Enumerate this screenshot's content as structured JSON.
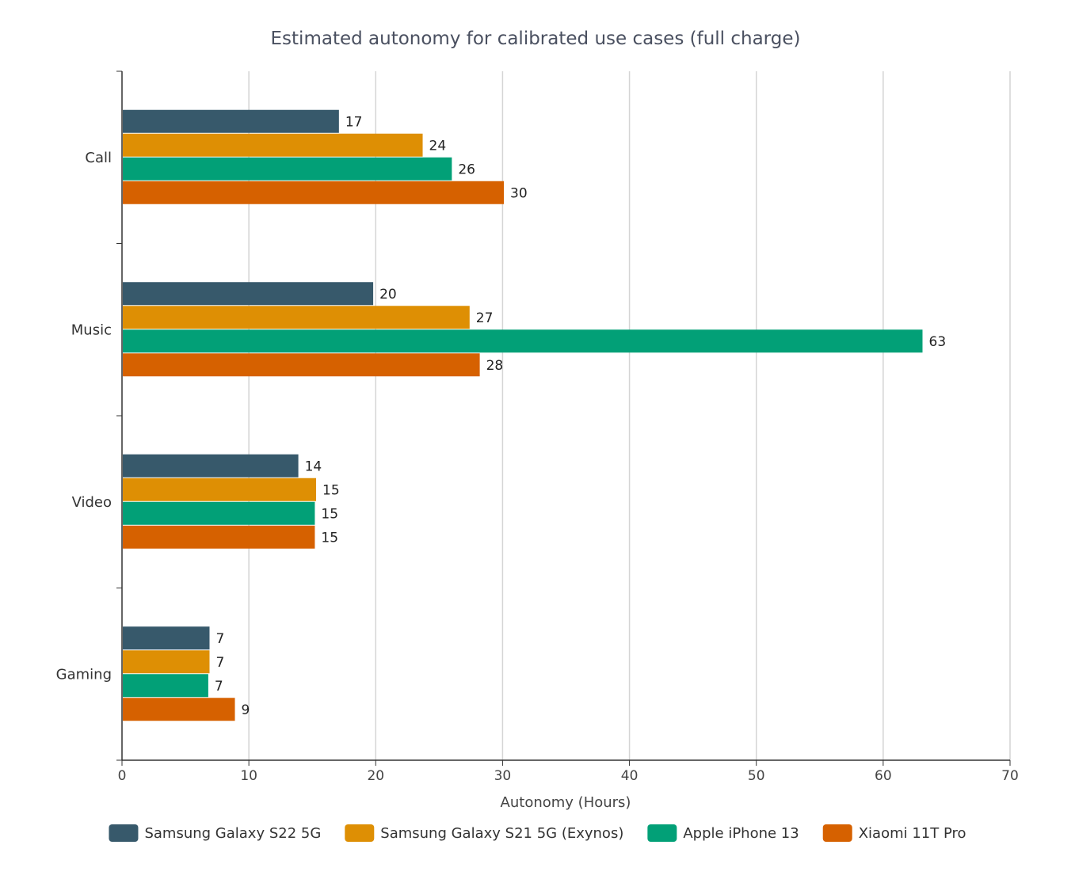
{
  "chart_data": {
    "type": "bar",
    "orientation": "horizontal",
    "title": "Estimated autonomy for calibrated use cases (full charge)",
    "xlabel": "Autonomy (Hours)",
    "ylabel": "",
    "xlim": [
      0,
      70
    ],
    "x_ticks": [
      0,
      10,
      20,
      30,
      40,
      50,
      60,
      70
    ],
    "grid": "vertical",
    "legend_position": "bottom",
    "categories": [
      "Call",
      "Music",
      "Video",
      "Gaming"
    ],
    "series": [
      {
        "name": "Samsung Galaxy S22 5G",
        "color": "#37596b",
        "values": [
          17.1,
          19.8,
          13.9,
          6.9
        ],
        "labels": [
          "17",
          "20",
          "14",
          "7"
        ]
      },
      {
        "name": "Samsung Galaxy S21 5G (Exynos)",
        "color": "#de8f04",
        "values": [
          23.7,
          27.4,
          15.3,
          6.9
        ],
        "labels": [
          "24",
          "27",
          "15",
          "7"
        ]
      },
      {
        "name": "Apple iPhone 13",
        "color": "#02a077",
        "values": [
          26.0,
          63.1,
          15.2,
          6.8
        ],
        "labels": [
          "26",
          "63",
          "15",
          "7"
        ]
      },
      {
        "name": "Xiaomi 11T Pro",
        "color": "#d66100",
        "values": [
          30.1,
          28.2,
          15.2,
          8.9
        ],
        "labels": [
          "30",
          "28",
          "15",
          "9"
        ]
      }
    ]
  }
}
